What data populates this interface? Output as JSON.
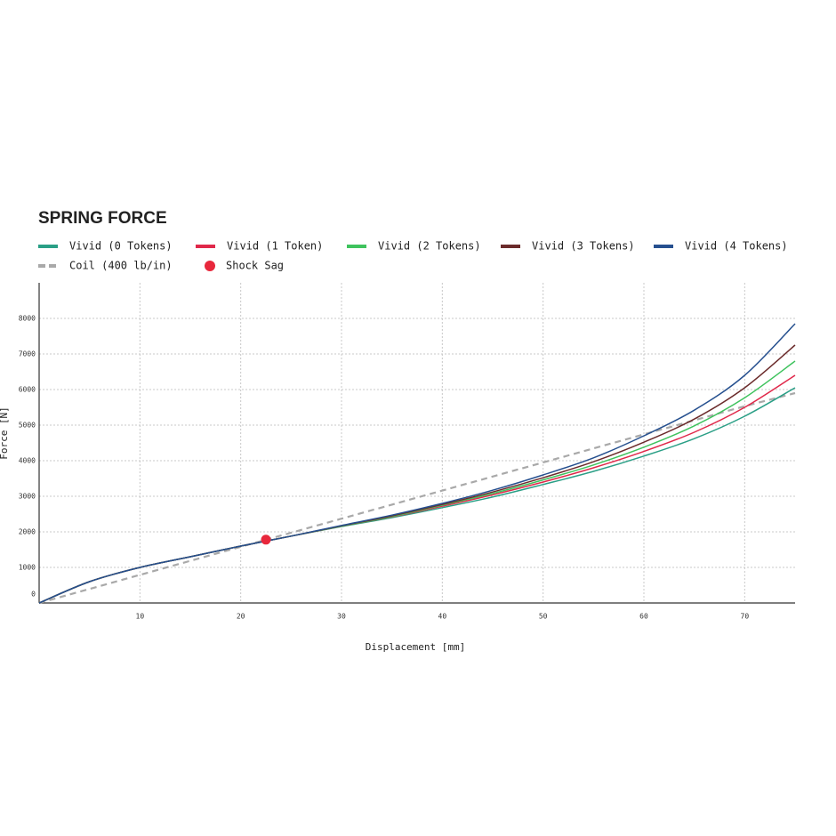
{
  "chart_data": {
    "type": "line",
    "title": "SPRING FORCE",
    "x_label": "Displacement [mm]",
    "y_label": "Force [N]",
    "xlim": [
      0,
      75
    ],
    "ylim": [
      0,
      9000
    ],
    "xticks": [
      10,
      20,
      30,
      40,
      50,
      60,
      70
    ],
    "yticks": [
      0,
      1000,
      2000,
      3000,
      4000,
      5000,
      6000,
      7000,
      8000
    ],
    "grid": true,
    "x": [
      0,
      5,
      10,
      15,
      20,
      25,
      30,
      35,
      40,
      45,
      50,
      55,
      60,
      65,
      70,
      75
    ],
    "series": [
      {
        "name": "Vivid (0 Tokens)",
        "color": "#2a9f86",
        "style": "solid",
        "values": [
          0,
          600,
          1000,
          1300,
          1600,
          1880,
          2150,
          2400,
          2680,
          2980,
          3330,
          3700,
          4130,
          4620,
          5250,
          6050
        ]
      },
      {
        "name": "Vivid (1 Token)",
        "color": "#e0284a",
        "style": "solid",
        "values": [
          0,
          600,
          1000,
          1300,
          1600,
          1880,
          2160,
          2420,
          2720,
          3040,
          3400,
          3800,
          4260,
          4800,
          5500,
          6400
        ]
      },
      {
        "name": "Vivid (2 Tokens)",
        "color": "#3fc35e",
        "style": "solid",
        "values": [
          0,
          600,
          1000,
          1300,
          1600,
          1880,
          2160,
          2430,
          2750,
          3080,
          3460,
          3880,
          4380,
          4980,
          5770,
          6800
        ]
      },
      {
        "name": "Vivid (3 Tokens)",
        "color": "#6b2b2b",
        "style": "solid",
        "values": [
          0,
          600,
          1000,
          1300,
          1600,
          1880,
          2170,
          2450,
          2770,
          3120,
          3520,
          3970,
          4520,
          5170,
          6050,
          7250
        ]
      },
      {
        "name": "Vivid (4 Tokens)",
        "color": "#26508f",
        "style": "solid",
        "values": [
          0,
          600,
          1000,
          1300,
          1600,
          1880,
          2180,
          2470,
          2800,
          3170,
          3600,
          4080,
          4700,
          5420,
          6400,
          7850
        ]
      },
      {
        "name": "Coil (400 lb/in)",
        "color": "#a9a9a9",
        "style": "dashed",
        "values": [
          0,
          395,
          790,
          1185,
          1580,
          1975,
          2370,
          2765,
          3160,
          3555,
          3950,
          4345,
          4740,
          5135,
          5530,
          5900
        ]
      }
    ],
    "markers": [
      {
        "name": "Shock Sag",
        "color": "#e8283c",
        "x": 22.5,
        "y": 1780
      }
    ]
  }
}
